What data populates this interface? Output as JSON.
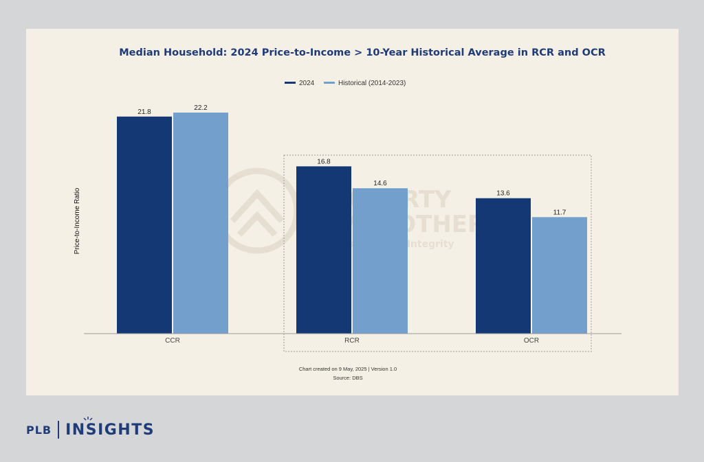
{
  "chart_data": {
    "type": "bar",
    "title": "Median Household: 2024 Price-to-Income > 10-Year Historical Average in RCR and OCR",
    "ylabel": "Price-to-Income Ratio",
    "xlabel": "",
    "categories": [
      "CCR",
      "RCR",
      "OCR"
    ],
    "series": [
      {
        "name": "2024",
        "values": [
          21.8,
          16.8,
          13.6
        ],
        "color": "#143874"
      },
      {
        "name": "Historical (2014-2023)",
        "values": [
          22.2,
          14.6,
          11.7
        ],
        "color": "#729fcb"
      }
    ],
    "ylim": [
      0,
      22.2
    ],
    "grid": false,
    "legend": "top-center",
    "highlight_categories": [
      "RCR",
      "OCR"
    ]
  },
  "footnote": {
    "line1": "Chart created on 9 May, 2025 | Version 1.0",
    "line2": "Source: DBS"
  },
  "watermark": {
    "line1": "PROPERTY",
    "line2": "LIMBROTHERS",
    "line3": "Real Estate with Integrity"
  },
  "brand": {
    "plb": "PLB",
    "insights": "INSIGHTS"
  },
  "colors": {
    "card_background": "#f5f0e6",
    "page_background": "#d5d6d8",
    "title": "#1f3b78"
  }
}
